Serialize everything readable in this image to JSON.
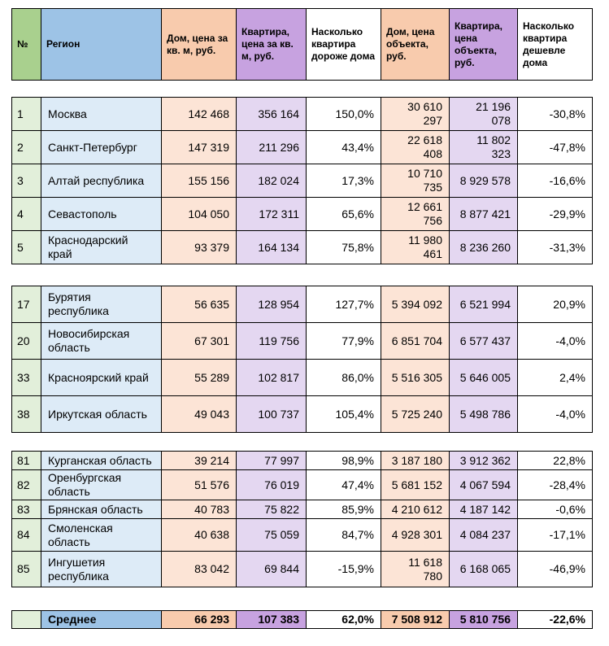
{
  "colors": {
    "header_green": "#A9D08E",
    "header_blue": "#9DC3E6",
    "header_orange": "#F8CBAD",
    "header_purple": "#C7A2E0",
    "light_green": "#E2EFDA",
    "light_blue": "#DDEBF7",
    "light_orange": "#FCE4D6",
    "light_purple": "#E4D7F1",
    "white": "#FFFFFF",
    "border": "#000000"
  },
  "table": {
    "columns": [
      {
        "id": "num",
        "label": "№"
      },
      {
        "id": "region",
        "label": "Регион"
      },
      {
        "id": "house_price_sqm",
        "label": "Дом, цена за кв. м, руб."
      },
      {
        "id": "apt_price_sqm",
        "label": "Квартира, цена за кв. м, руб."
      },
      {
        "id": "apt_pricier_pct",
        "label": "Насколько квартира дороже дома"
      },
      {
        "id": "house_object_price",
        "label": "Дом, цена объекта, руб."
      },
      {
        "id": "apt_object_price",
        "label": "Квартира, цена объекта, руб."
      },
      {
        "id": "apt_cheaper_pct",
        "label": "Насколько квартира дешевле дома"
      }
    ],
    "sections": [
      {
        "rows": [
          [
            "1",
            "Москва",
            "142 468",
            "356 164",
            "150,0%",
            "30 610 297",
            "21 196 078",
            "-30,8%"
          ],
          [
            "2",
            "Санкт-Петербург",
            "147 319",
            "211 296",
            "43,4%",
            "22 618 408",
            "11 802 323",
            "-47,8%"
          ],
          [
            "3",
            "Алтай республика",
            "155 156",
            "182 024",
            "17,3%",
            "10 710 735",
            "8 929 578",
            "-16,6%"
          ],
          [
            "4",
            "Севастополь",
            "104 050",
            "172 311",
            "65,6%",
            "12 661 756",
            "8 877 421",
            "-29,9%"
          ],
          [
            "5",
            "Краснодарский край",
            "93 379",
            "164 134",
            "75,8%",
            "11 980 461",
            "8 236 260",
            "-31,3%"
          ]
        ]
      },
      {
        "rows": [
          [
            "17",
            "Бурятия республика",
            "56 635",
            "128 954",
            "127,7%",
            "5 394 092",
            "6 521 994",
            "20,9%"
          ],
          [
            "20",
            "Новосибирская область",
            "67 301",
            "119 756",
            "77,9%",
            "6 851 704",
            "6 577 437",
            "-4,0%"
          ],
          [
            "33",
            "Красноярский край",
            "55 289",
            "102 817",
            "86,0%",
            "5 516 305",
            "5 646 005",
            "2,4%"
          ],
          [
            "38",
            "Иркутская область",
            "49 043",
            "100 737",
            "105,4%",
            "5 725 240",
            "5 498 786",
            "-4,0%"
          ]
        ]
      },
      {
        "rows": [
          [
            "81",
            "Курганская область",
            "39 214",
            "77 997",
            "98,9%",
            "3 187 180",
            "3 912 362",
            "22,8%"
          ],
          [
            "82",
            "Оренбургская область",
            "51 576",
            "76 019",
            "47,4%",
            "5 681 152",
            "4 067 594",
            "-28,4%"
          ],
          [
            "83",
            "Брянская область",
            "40 783",
            "75 822",
            "85,9%",
            "4 210 612",
            "4 187 142",
            "-0,6%"
          ],
          [
            "84",
            "Смоленская область",
            "40 638",
            "75 059",
            "84,7%",
            "4 928 301",
            "4 084 237",
            "-17,1%"
          ],
          [
            "85",
            "Ингушетия республика",
            "83 042",
            "69 844",
            "-15,9%",
            "11 618 780",
            "6 168 065",
            "-46,9%"
          ]
        ]
      }
    ],
    "footer": [
      "",
      "Среднее",
      "66 293",
      "107 383",
      "62,0%",
      "7 508 912",
      "5 810 756",
      "-22,6%"
    ]
  }
}
